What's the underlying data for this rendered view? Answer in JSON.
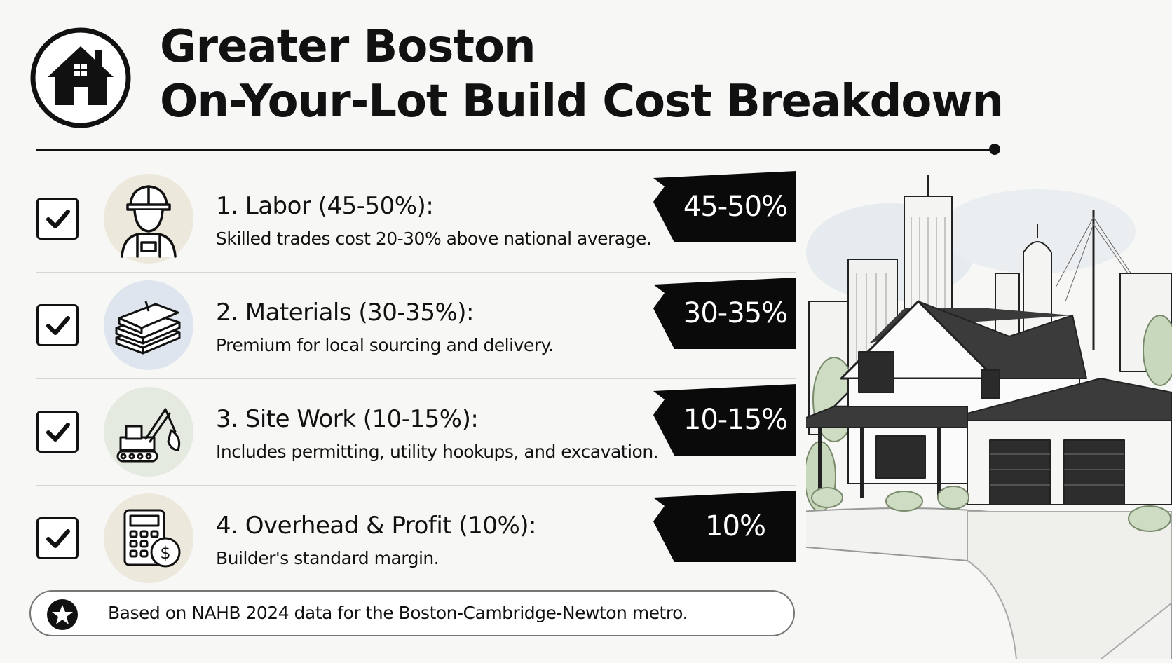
{
  "header": {
    "title_line1": "Greater Boston",
    "title_line2": "On-Your-Lot Build Cost Breakdown",
    "logo_icon": "house-icon"
  },
  "items": [
    {
      "title": "1. Labor (45-50%):",
      "description": "Skilled trades cost 20-30% above national average.",
      "badge": "45-50%",
      "icon": "construction-worker-icon",
      "icon_bg": "#ece8dc"
    },
    {
      "title": "2. Materials (30-35%):",
      "description": "Premium for local sourcing and delivery.",
      "badge": "30-35%",
      "icon": "lumber-stack-icon",
      "icon_bg": "#dfe5ee"
    },
    {
      "title": "3. Site Work (10-15%):",
      "description": "Includes permitting, utility hookups, and excavation.",
      "badge": "10-15%",
      "icon": "excavator-icon",
      "icon_bg": "#e4eadf"
    },
    {
      "title": "4. Overhead & Profit (10%):",
      "description": "Builder's standard margin.",
      "badge": "10%",
      "icon": "calculator-dollar-icon",
      "icon_bg": "#ece8dc"
    }
  ],
  "footer": {
    "note": "Based on NAHB 2024 data for the Boston-Cambridge-Newton metro.",
    "icon": "star-icon"
  },
  "illustration": {
    "subject": "house-with-boston-skyline-illustration"
  },
  "colors": {
    "ink": "#111111",
    "background": "#f7f7f5",
    "badge_fill": "#0a0a0a",
    "badge_text": "#ffffff"
  }
}
